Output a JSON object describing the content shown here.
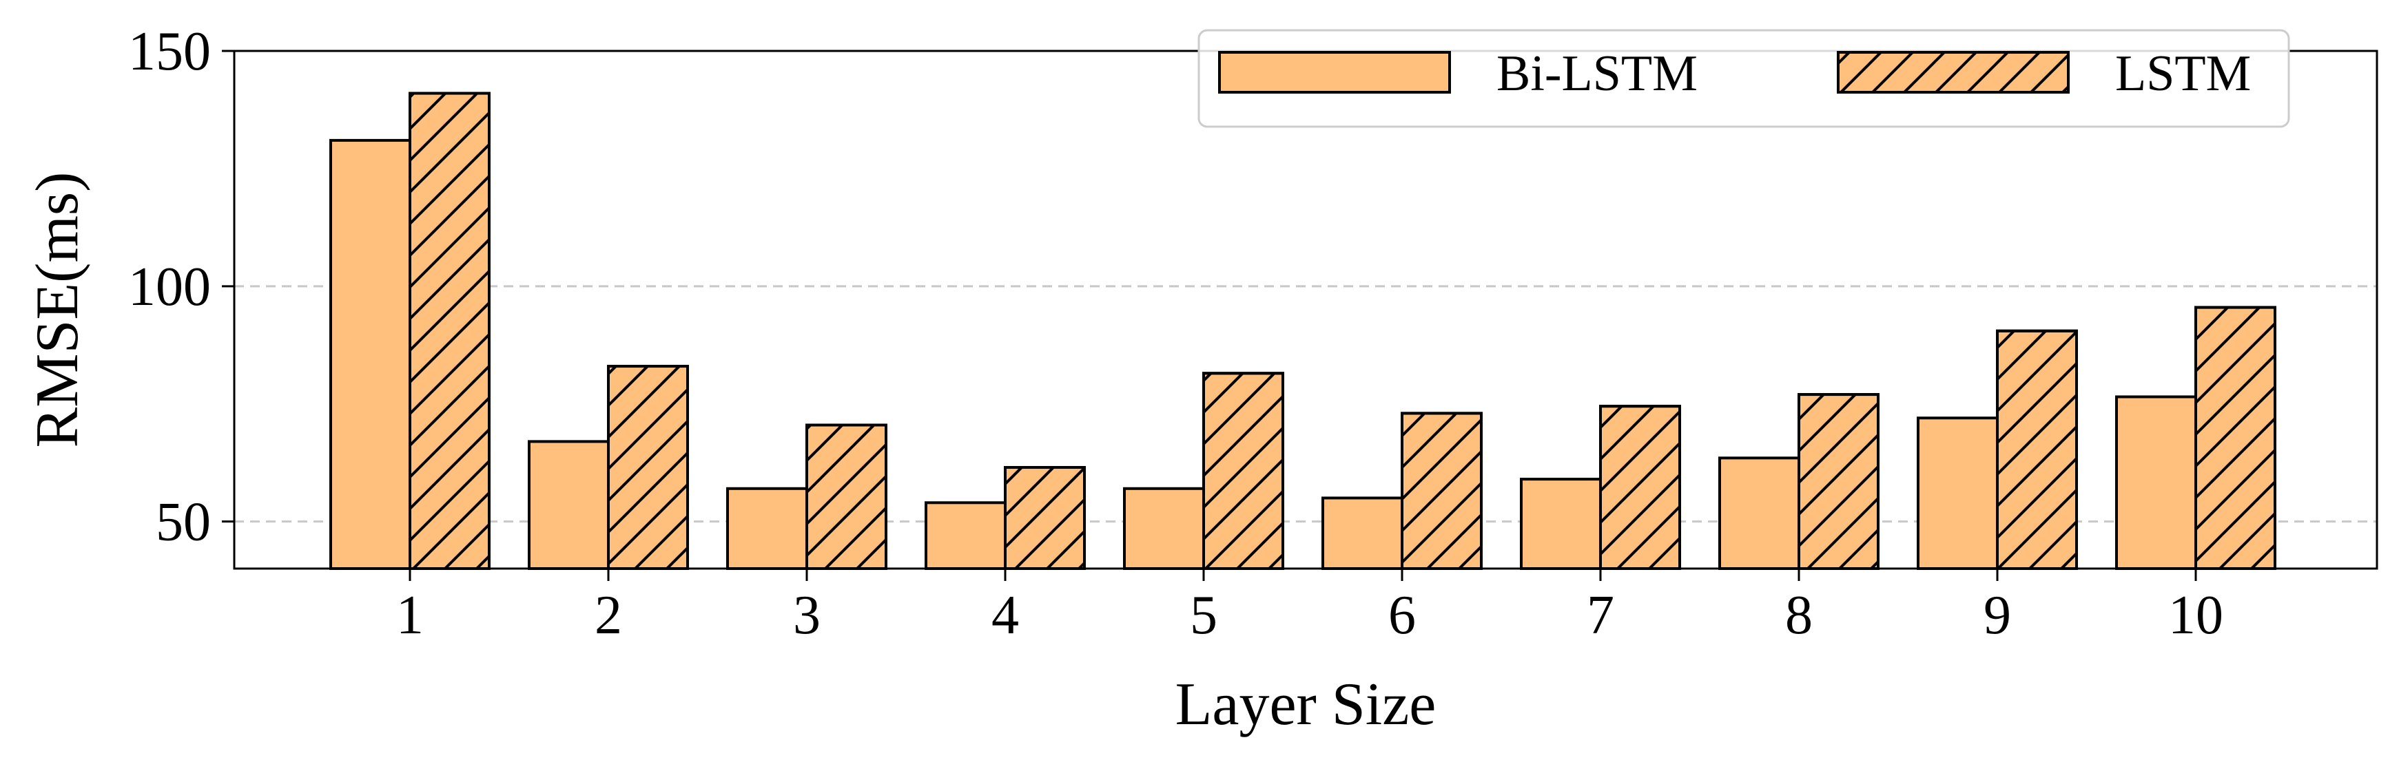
{
  "chart_data": {
    "type": "bar",
    "xlabel": "Layer Size",
    "ylabel": "RMSE(ms)",
    "categories": [
      "1",
      "2",
      "3",
      "4",
      "5",
      "6",
      "7",
      "8",
      "9",
      "10"
    ],
    "series": [
      {
        "name": "Bi-LSTM",
        "values": [
          131,
          67,
          57,
          54,
          57,
          55,
          59,
          63.5,
          72,
          76.5
        ],
        "hatch": false
      },
      {
        "name": "LSTM",
        "values": [
          141,
          83,
          70.5,
          61.5,
          81.5,
          73,
          74.5,
          77,
          90.5,
          95.5
        ],
        "hatch": true
      }
    ],
    "ylim": [
      40,
      150
    ],
    "yticks": [
      50,
      100,
      150
    ],
    "grid": "y-dashed",
    "legend_position": "top-right",
    "colors": {
      "bar_fill": "#fec07c",
      "bar_edge": "#000000",
      "grid": "#c8c8c8"
    }
  }
}
